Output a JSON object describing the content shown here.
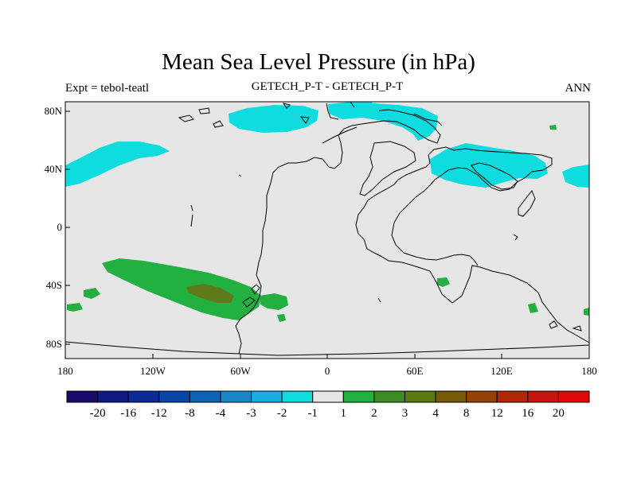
{
  "title": "Mean Sea Level Pressure (in hPa)",
  "left_label": "Expt = tebol-teatl",
  "center_label": "GETECH_P-T - GETECH_P-T",
  "right_label": "ANN",
  "lat_ticks": [
    "80N",
    "40N",
    "0",
    "40S",
    "80S"
  ],
  "lon_ticks": [
    "180",
    "120W",
    "60W",
    "0",
    "60E",
    "120E",
    "180"
  ],
  "colorbar": {
    "labels": [
      "-20",
      "-16",
      "-12",
      "-8",
      "-4",
      "-3",
      "-2",
      "-1",
      "1",
      "2",
      "3",
      "4",
      "8",
      "12",
      "16",
      "20"
    ],
    "colors": [
      "#1a0a6b",
      "#0f1a82",
      "#0a2a96",
      "#0a45a8",
      "#1064b8",
      "#1a86c8",
      "#18aee0",
      "#0fdcde",
      "#e6e6e6",
      "#22b040",
      "#3f8c26",
      "#587a0e",
      "#7a5a0a",
      "#98400a",
      "#b02808",
      "#c81410",
      "#e00808"
    ]
  },
  "map_style": {
    "ocean_fill": "#e6e6e6",
    "positive_1_2": "#22b040",
    "positive_3_4": "#5f7a1a",
    "negative_1_2": "#0fdcde",
    "coast_color": "#000000"
  }
}
